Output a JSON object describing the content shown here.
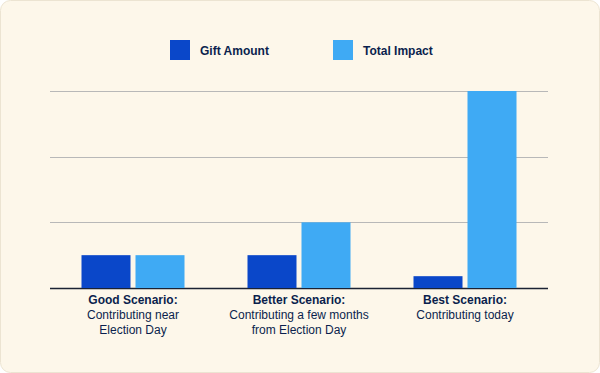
{
  "chart_data": {
    "type": "bar",
    "categories": [
      "Good Scenario:\nContributing near\nElection Day",
      "Better Scenario:\nContributing a few months\nfrom Election Day",
      "Best Scenario:\nContributing today"
    ],
    "series": [
      {
        "name": "Gift Amount",
        "color": "#0a47c9",
        "values": [
          0.5,
          0.5,
          0.18
        ]
      },
      {
        "name": "Total Impact",
        "color": "#3faaf4",
        "values": [
          0.5,
          1,
          3
        ]
      }
    ],
    "ylim": [
      0,
      3
    ],
    "yticks": [
      0,
      1,
      2,
      3
    ],
    "grid": true,
    "legend": "top",
    "tick_labels": "x"
  }
}
